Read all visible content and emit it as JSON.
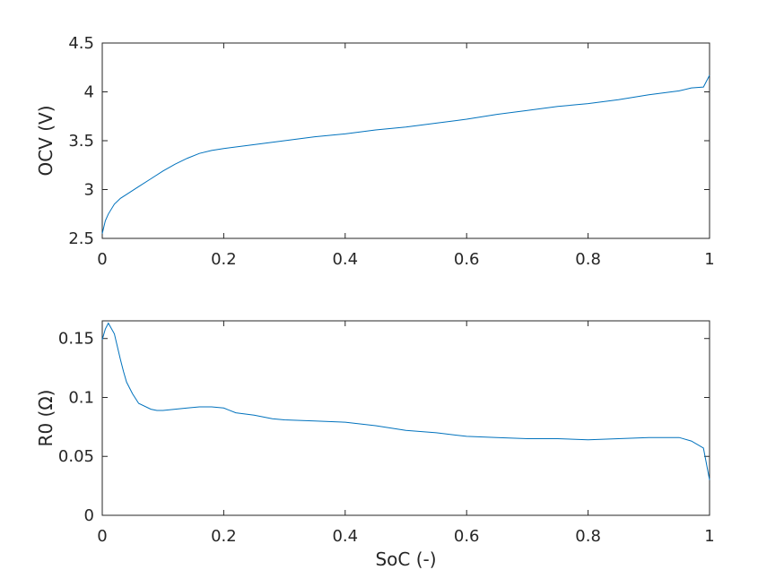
{
  "chart_data": [
    {
      "type": "line",
      "xlabel": "",
      "ylabel": "OCV (V)",
      "xlim": [
        0,
        1
      ],
      "ylim": [
        2.5,
        4.5
      ],
      "xticks": [
        0,
        0.2,
        0.4,
        0.6,
        0.8,
        1
      ],
      "xtick_labels": [
        "0",
        "0.2",
        "0.4",
        "0.6",
        "0.8",
        "1"
      ],
      "yticks": [
        2.5,
        3,
        3.5,
        4,
        4.5
      ],
      "ytick_labels": [
        "2.5",
        "3",
        "3.5",
        "4",
        "4.5"
      ],
      "grid": false,
      "color": "#0072bd",
      "series": [
        {
          "x": [
            0,
            0.005,
            0.01,
            0.02,
            0.03,
            0.04,
            0.06,
            0.08,
            0.1,
            0.12,
            0.14,
            0.16,
            0.18,
            0.2,
            0.25,
            0.3,
            0.35,
            0.4,
            0.45,
            0.5,
            0.55,
            0.6,
            0.65,
            0.7,
            0.75,
            0.8,
            0.85,
            0.9,
            0.95,
            0.97,
            0.99,
            1.0
          ],
          "y": [
            2.55,
            2.68,
            2.75,
            2.85,
            2.91,
            2.95,
            3.03,
            3.11,
            3.19,
            3.26,
            3.32,
            3.37,
            3.4,
            3.42,
            3.46,
            3.5,
            3.54,
            3.57,
            3.61,
            3.64,
            3.68,
            3.72,
            3.77,
            3.81,
            3.85,
            3.88,
            3.92,
            3.97,
            4.01,
            4.04,
            4.05,
            4.17
          ]
        }
      ]
    },
    {
      "type": "line",
      "xlabel": "SoC (-)",
      "ylabel": "R0 (Ω)",
      "xlim": [
        0,
        1
      ],
      "ylim": [
        0,
        0.165
      ],
      "xticks": [
        0,
        0.2,
        0.4,
        0.6,
        0.8,
        1
      ],
      "xtick_labels": [
        "0",
        "0.2",
        "0.4",
        "0.6",
        "0.8",
        "1"
      ],
      "yticks": [
        0,
        0.05,
        0.1,
        0.15
      ],
      "ytick_labels": [
        "0",
        "0.05",
        "0.1",
        "0.15"
      ],
      "grid": false,
      "color": "#0072bd",
      "series": [
        {
          "x": [
            0,
            0.005,
            0.01,
            0.02,
            0.03,
            0.035,
            0.04,
            0.05,
            0.06,
            0.08,
            0.09,
            0.1,
            0.12,
            0.14,
            0.16,
            0.18,
            0.2,
            0.22,
            0.25,
            0.28,
            0.3,
            0.35,
            0.4,
            0.45,
            0.5,
            0.55,
            0.6,
            0.65,
            0.7,
            0.75,
            0.8,
            0.85,
            0.9,
            0.95,
            0.97,
            0.99,
            1.0
          ],
          "y": [
            0.149,
            0.158,
            0.163,
            0.154,
            0.132,
            0.122,
            0.113,
            0.103,
            0.095,
            0.09,
            0.089,
            0.089,
            0.09,
            0.091,
            0.092,
            0.092,
            0.091,
            0.087,
            0.085,
            0.082,
            0.081,
            0.08,
            0.079,
            0.076,
            0.072,
            0.07,
            0.067,
            0.066,
            0.065,
            0.065,
            0.064,
            0.065,
            0.066,
            0.066,
            0.063,
            0.057,
            0.03
          ]
        }
      ]
    }
  ]
}
